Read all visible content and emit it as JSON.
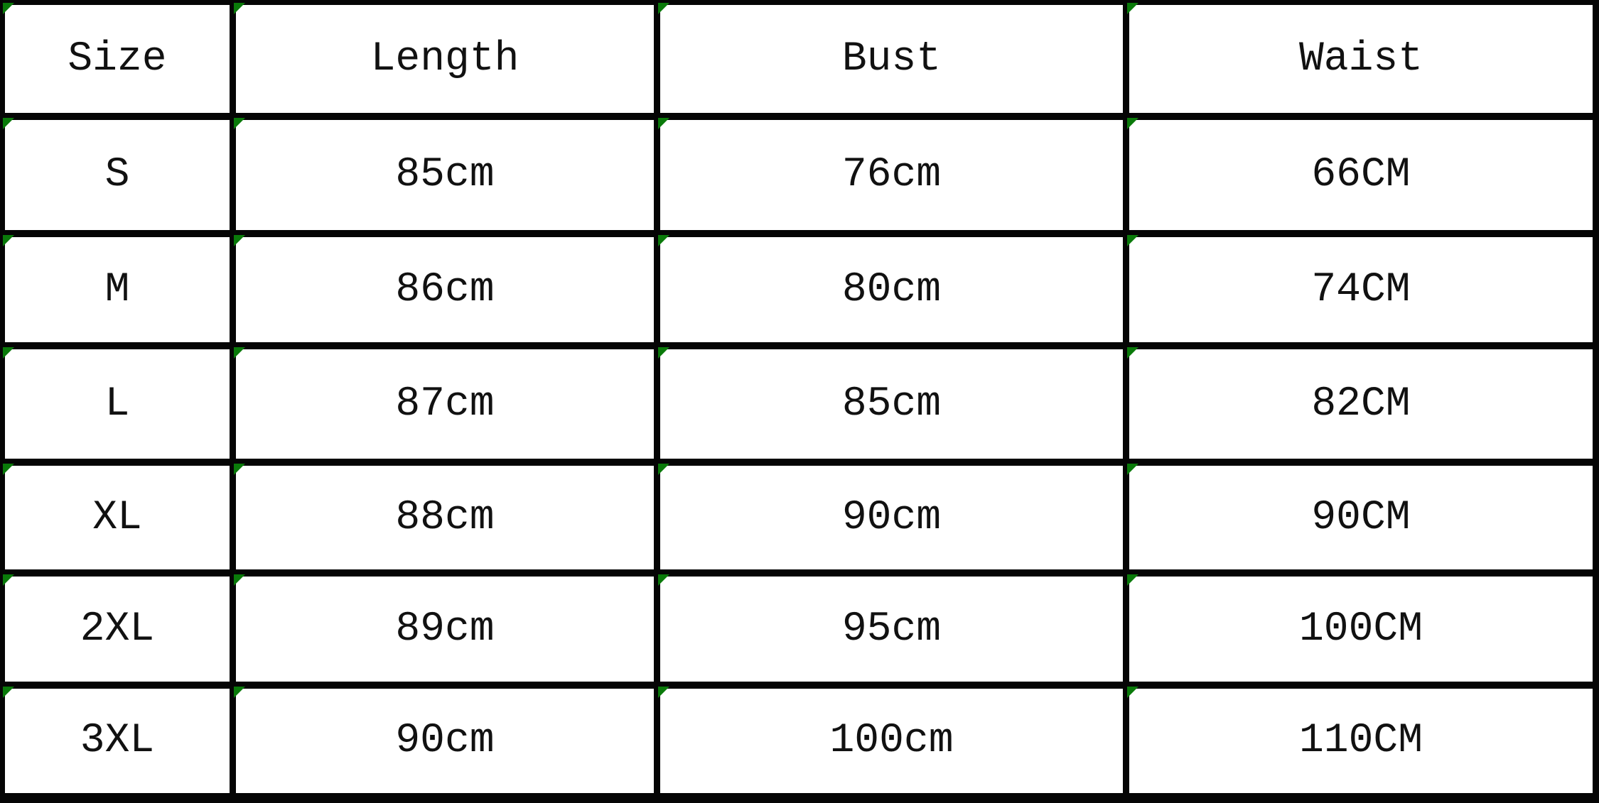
{
  "table": {
    "headers": [
      "Size",
      "Length",
      "Bust",
      "Waist"
    ],
    "rows": [
      [
        "S",
        "85cm",
        "76cm",
        "66CM"
      ],
      [
        "M",
        "86cm",
        "80cm",
        "74CM"
      ],
      [
        "L",
        "87cm",
        "85cm",
        "82CM"
      ],
      [
        "XL",
        "88cm",
        "90cm",
        "90CM"
      ],
      [
        "2XL",
        "89cm",
        "95cm",
        "100CM"
      ],
      [
        "3XL",
        "90cm",
        "100cm",
        "110CM"
      ]
    ]
  },
  "colors": {
    "border": "#050505",
    "corner_marker": "#0a7a0a",
    "cell_bg": "#ffffff"
  }
}
